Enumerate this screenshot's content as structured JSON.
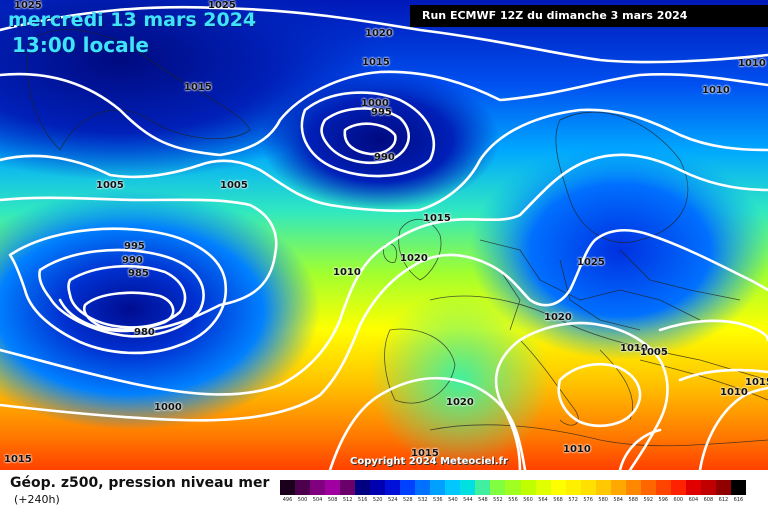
{
  "header": {
    "date_title": "mercredi 13 mars 2024",
    "time_title": "13:00 locale",
    "run_info": "Run ECMWF 12Z du dimanche 3 mars 2024"
  },
  "footer": {
    "copyright": "Copyright 2024 Meteociel.fr",
    "parameter": "Géop. z500, pression niveau mer",
    "lead_time": "(+240h)"
  },
  "isobar_labels": [
    "1025",
    "1025",
    "1020",
    "1015",
    "1015",
    "1010",
    "1010",
    "1000",
    "995",
    "990",
    "1005",
    "1005",
    "1015",
    "995",
    "990",
    "985",
    "980",
    "1010",
    "1020",
    "1025",
    "1020",
    "1010",
    "1005",
    "1010",
    "1015",
    "1000",
    "1020",
    "1015",
    "1010",
    "1015"
  ],
  "scale": {
    "values": [
      "496",
      "500",
      "504",
      "508",
      "512",
      "516",
      "520",
      "524",
      "528",
      "532",
      "536",
      "540",
      "544",
      "548",
      "552",
      "556",
      "560",
      "564",
      "568",
      "572",
      "576",
      "580",
      "584",
      "588",
      "592",
      "596",
      "600",
      "604",
      "608",
      "612",
      "616"
    ],
    "colors": [
      "#1a001a",
      "#4d004d",
      "#800080",
      "#a000a0",
      "#6a006a",
      "#000080",
      "#0000b0",
      "#0010d8",
      "#0040ff",
      "#0070ff",
      "#00a0ff",
      "#00c8ff",
      "#00e0e0",
      "#40f0a0",
      "#80ff40",
      "#a0ff20",
      "#c0ff00",
      "#e0ff00",
      "#ffff00",
      "#fff000",
      "#ffe000",
      "#ffc800",
      "#ffa800",
      "#ff8800",
      "#ff6600",
      "#ff4400",
      "#ff2200",
      "#e00000",
      "#c00000",
      "#900000",
      "#000000"
    ]
  },
  "colors": {
    "title": "#3fe3ff",
    "isobar": "#ffffff"
  }
}
